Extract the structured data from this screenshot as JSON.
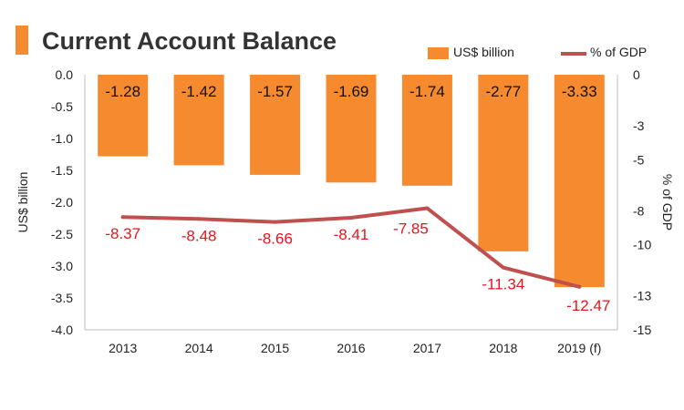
{
  "title": "Current Account Balance",
  "colors": {
    "bar": "#f58a2e",
    "line": "#c0504d",
    "accent": "#f58a2e",
    "pct_label": "#e8141c"
  },
  "chart_data": {
    "type": "bar",
    "categories": [
      "2013",
      "2014",
      "2015",
      "2016",
      "2017",
      "2018",
      "2019 (f)"
    ],
    "series": [
      {
        "name": "US$ billion",
        "type": "bar",
        "axis": "left",
        "values": [
          -1.28,
          -1.42,
          -1.57,
          -1.69,
          -1.74,
          -2.77,
          -3.33
        ]
      },
      {
        "name": "% of GDP",
        "type": "line",
        "axis": "right",
        "values": [
          -8.37,
          -8.48,
          -8.66,
          -8.41,
          -7.85,
          -11.34,
          -12.47
        ]
      }
    ],
    "bar_labels": [
      "-1.28",
      "-1.42",
      "-1.57",
      "-1.69",
      "-1.74",
      "-2.77",
      "-3.33"
    ],
    "line_labels": [
      "-8.37",
      "-8.48",
      "-8.66",
      "-8.41",
      "-7.85",
      "-11.34",
      "-12.47"
    ],
    "ylabel": "US$ billion",
    "y2label": "% of GDP",
    "ylim": [
      -4.0,
      0.0
    ],
    "y2lim": [
      -15,
      0
    ],
    "yticks": [
      "0.0",
      "-0.5",
      "-1.0",
      "-1.5",
      "-2.0",
      "-2.5",
      "-3.0",
      "-3.5",
      "-4.0"
    ],
    "y2ticks": [
      "0",
      "-3",
      "-5",
      "-8",
      "-10",
      "-13",
      "-15"
    ],
    "legend_position": "top-right",
    "grid": false
  }
}
